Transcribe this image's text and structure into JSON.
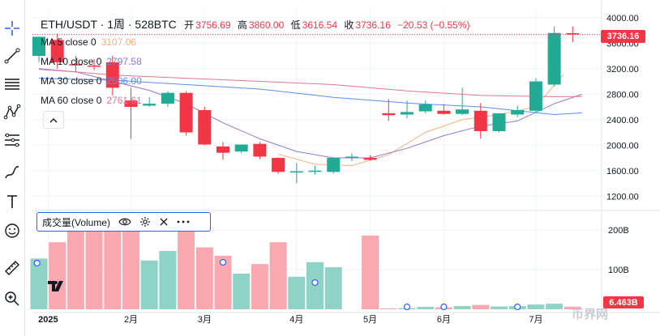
{
  "header": {
    "symbol": "ETH/USDT · 1周 · 528BTC",
    "open_label": "开",
    "open": "3756.69",
    "high_label": "高",
    "high": "3860.00",
    "low_label": "低",
    "low": "3616.54",
    "close_label": "收",
    "close": "3736.16",
    "change": "−20.53 (−0.55%)"
  },
  "indicators": [
    {
      "label": "MA 5 close 0",
      "value": "3107.06",
      "color": "#f4b183"
    },
    {
      "label": "MA 10 close 0",
      "value": "2797.58",
      "color": "#9575cd"
    },
    {
      "label": "MA 30 close 0",
      "value": "2506.00",
      "color": "#5b8def"
    },
    {
      "label": "MA 60 close 0",
      "value": "2761.61",
      "color": "#e57396"
    }
  ],
  "volume_legend": {
    "label": "成交量(Volume)"
  },
  "price_tag": "3736.16",
  "volume_tag": "6.463B",
  "watermark_brand": "币界网",
  "colors": {
    "up": "#22ab94",
    "down": "#f23645",
    "up_vol": "#8fd3c6",
    "down_vol": "#f8a8ae"
  },
  "chart_data": {
    "type": "candlestick",
    "title": "ETH/USDT · 1周 · 528BTC",
    "y_ticks": [
      4000,
      3600,
      3200,
      2800,
      2400,
      2000,
      1600,
      1200
    ],
    "y_tick_labels": [
      "4000.00",
      "3600.00",
      "3200.00",
      "2800.00",
      "2400.00",
      "2000.00",
      "1600.00",
      "1200.00"
    ],
    "ylim": [
      1000,
      4150
    ],
    "vol_ticks": [
      100,
      200
    ],
    "vol_tick_labels": [
      "100B",
      "200B"
    ],
    "vol_max": 245,
    "x_labels": [
      {
        "label": "2025",
        "index": 0.5
      },
      {
        "label": "2月",
        "index": 5
      },
      {
        "label": "3月",
        "index": 9
      },
      {
        "label": "4月",
        "index": 14
      },
      {
        "label": "5月",
        "index": 18
      },
      {
        "label": "6月",
        "index": 22
      },
      {
        "label": "7月",
        "index": 27
      }
    ],
    "candles": [
      {
        "o": 3400,
        "h": 3700,
        "l": 3300,
        "c": 3700
      },
      {
        "o": 3650,
        "h": 3750,
        "l": 3200,
        "c": 3300
      },
      {
        "o": 3270,
        "h": 3400,
        "l": 3150,
        "c": 3250
      },
      {
        "o": 3250,
        "h": 3350,
        "l": 3180,
        "c": 3230
      },
      {
        "o": 3300,
        "h": 3400,
        "l": 2780,
        "c": 2900
      },
      {
        "o": 2700,
        "h": 2900,
        "l": 2100,
        "c": 2600
      },
      {
        "o": 2620,
        "h": 2750,
        "l": 2600,
        "c": 2650
      },
      {
        "o": 2650,
        "h": 2850,
        "l": 2600,
        "c": 2820
      },
      {
        "o": 2820,
        "h": 2850,
        "l": 2150,
        "c": 2200
      },
      {
        "o": 2550,
        "h": 2600,
        "l": 2000,
        "c": 2010
      },
      {
        "o": 1980,
        "h": 2050,
        "l": 1770,
        "c": 1880
      },
      {
        "o": 1900,
        "h": 2010,
        "l": 1870,
        "c": 2010
      },
      {
        "o": 2020,
        "h": 2050,
        "l": 1780,
        "c": 1820
      },
      {
        "o": 1800,
        "h": 1810,
        "l": 1550,
        "c": 1580
      },
      {
        "o": 1590,
        "h": 1720,
        "l": 1400,
        "c": 1590
      },
      {
        "o": 1600,
        "h": 1680,
        "l": 1540,
        "c": 1600
      },
      {
        "o": 1580,
        "h": 1800,
        "l": 1550,
        "c": 1800
      },
      {
        "o": 1800,
        "h": 1870,
        "l": 1750,
        "c": 1820
      },
      {
        "o": 1800,
        "h": 1840,
        "l": 1760,
        "c": 1770
      },
      {
        "o": 2500,
        "h": 2720,
        "l": 2380,
        "c": 2470
      },
      {
        "o": 2480,
        "h": 2700,
        "l": 2420,
        "c": 2520
      },
      {
        "o": 2530,
        "h": 2700,
        "l": 2500,
        "c": 2640
      },
      {
        "o": 2540,
        "h": 2640,
        "l": 2480,
        "c": 2490
      },
      {
        "o": 2490,
        "h": 2900,
        "l": 2470,
        "c": 2560
      },
      {
        "o": 2540,
        "h": 2660,
        "l": 2100,
        "c": 2220
      },
      {
        "o": 2220,
        "h": 2500,
        "l": 2200,
        "c": 2500
      },
      {
        "o": 2480,
        "h": 2620,
        "l": 2440,
        "c": 2550
      },
      {
        "o": 2540,
        "h": 3050,
        "l": 2500,
        "c": 3000
      },
      {
        "o": 2950,
        "h": 3860,
        "l": 2920,
        "c": 3760
      },
      {
        "o": 3756.69,
        "h": 3860,
        "l": 3616.54,
        "c": 3736.16
      }
    ],
    "volumes": [
      128,
      169,
      240,
      197,
      199,
      234,
      123,
      147,
      208,
      156,
      135,
      90,
      114,
      169,
      82,
      119,
      106,
      0,
      186,
      2,
      3,
      6,
      5,
      8,
      11,
      7,
      8,
      12,
      14,
      6.463
    ],
    "ma_series": [
      {
        "name": "MA 5 close 0",
        "color": "#f4b183",
        "x": [
          13,
          15,
          17,
          19,
          21,
          23,
          25,
          27,
          28.5
        ],
        "y": [
          1860,
          1700,
          1680,
          1850,
          2200,
          2400,
          2480,
          2600,
          3107
        ]
      },
      {
        "name": "MA 10 close 0",
        "color": "#9575cd",
        "x": [
          0,
          2,
          4,
          6,
          8,
          10,
          12,
          14,
          16,
          18,
          20,
          22,
          24,
          26,
          28,
          29.5
        ],
        "y": [
          3190,
          3150,
          3000,
          2860,
          2650,
          2350,
          2100,
          1900,
          1800,
          1800,
          1950,
          2150,
          2300,
          2380,
          2650,
          2797.58
        ]
      },
      {
        "name": "MA 30 close 0",
        "color": "#5b8def",
        "x": [
          0,
          4,
          8,
          12,
          16,
          20,
          24,
          28,
          29.5
        ],
        "y": [
          3050,
          3020,
          2950,
          2880,
          2750,
          2660,
          2600,
          2480,
          2506
        ]
      },
      {
        "name": "MA 60 close 0",
        "color": "#e57396",
        "x": [
          0,
          4,
          8,
          12,
          16,
          20,
          24,
          28,
          29.5
        ],
        "y": [
          3200,
          3100,
          3050,
          3000,
          2950,
          2850,
          2780,
          2760,
          2761.61
        ]
      }
    ]
  }
}
